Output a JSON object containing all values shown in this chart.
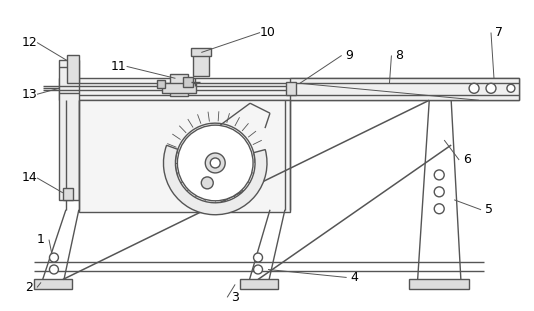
{
  "bg_color": "#ffffff",
  "line_color": "#555555",
  "label_color": "#000000",
  "figsize": [
    5.34,
    3.11
  ],
  "dpi": 100,
  "label_fs": 9,
  "lw": 1.0
}
